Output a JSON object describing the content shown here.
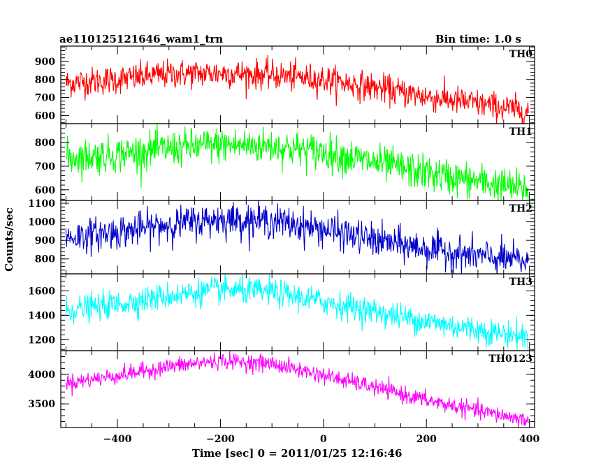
{
  "chart_data": {
    "type": "line",
    "title": "ae110125121646_wam1_trn",
    "subtitle": "Bin time: 1.0 s",
    "xlabel": "Time [sec] 0 = 2011/01/25 12:16:46",
    "ylabel": "Counts/sec",
    "xlim": [
      -510,
      410
    ],
    "xticks": [
      -400,
      -200,
      0,
      200,
      400
    ],
    "panels": [
      {
        "name": "TH0",
        "color": "#ff0000",
        "ylim": [
          555,
          985
        ],
        "yticks": [
          600,
          700,
          800,
          900
        ],
        "noise": 40,
        "trend": {
          "x": [
            -500,
            -400,
            -300,
            -200,
            -100,
            0,
            100,
            200,
            300,
            400
          ],
          "y": [
            780,
            800,
            830,
            835,
            825,
            800,
            755,
            705,
            665,
            620
          ]
        }
      },
      {
        "name": "TH1",
        "color": "#00ff00",
        "ylim": [
          555,
          880
        ],
        "yticks": [
          600,
          700,
          800
        ],
        "noise": 38,
        "trend": {
          "x": [
            -500,
            -400,
            -300,
            -200,
            -100,
            0,
            100,
            200,
            300,
            400
          ],
          "y": [
            735,
            750,
            775,
            790,
            785,
            760,
            715,
            670,
            635,
            600
          ]
        }
      },
      {
        "name": "TH2",
        "color": "#0000cc",
        "ylim": [
          720,
          1115
        ],
        "yticks": [
          800,
          900,
          1000,
          1100
        ],
        "noise": 45,
        "trend": {
          "x": [
            -500,
            -400,
            -300,
            -200,
            -100,
            0,
            100,
            200,
            300,
            400
          ],
          "y": [
            915,
            945,
            985,
            1015,
            1005,
            960,
            900,
            855,
            815,
            785
          ]
        }
      },
      {
        "name": "TH3",
        "color": "#00ffff",
        "ylim": [
          1110,
          1740
        ],
        "yticks": [
          1200,
          1400,
          1600
        ],
        "noise": 55,
        "trend": {
          "x": [
            -500,
            -400,
            -300,
            -200,
            -100,
            0,
            100,
            200,
            300,
            400
          ],
          "y": [
            1440,
            1490,
            1560,
            1610,
            1590,
            1510,
            1430,
            1350,
            1280,
            1220
          ]
        }
      },
      {
        "name": "TH0123",
        "color": "#ff00ff",
        "ylim": [
          3100,
          4400
        ],
        "yticks": [
          3500,
          4000
        ],
        "noise": 70,
        "trend": {
          "x": [
            -500,
            -400,
            -300,
            -200,
            -100,
            0,
            100,
            200,
            300,
            400
          ],
          "y": [
            3850,
            3980,
            4130,
            4230,
            4180,
            3980,
            3780,
            3560,
            3380,
            3220
          ]
        }
      }
    ]
  }
}
